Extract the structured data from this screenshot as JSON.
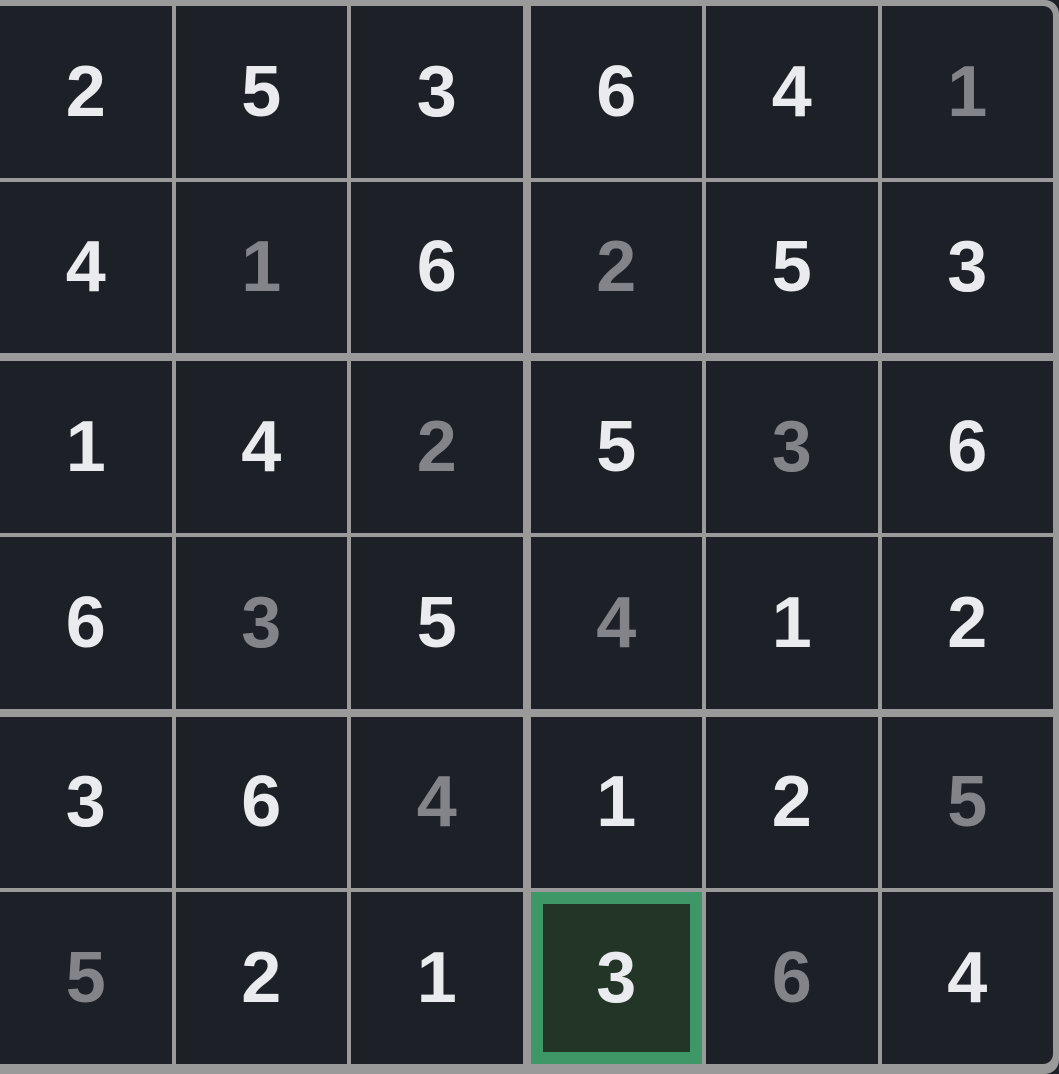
{
  "app": {
    "name": "Sudoku 6x6 board"
  },
  "board": {
    "rows": 6,
    "cols": 6,
    "block": {
      "rows": 2,
      "cols": 3
    },
    "selected": {
      "row": 5,
      "col": 3
    },
    "cells": [
      [
        {
          "value": "2",
          "variant": "bright"
        },
        {
          "value": "5",
          "variant": "bright"
        },
        {
          "value": "3",
          "variant": "bright"
        },
        {
          "value": "6",
          "variant": "bright"
        },
        {
          "value": "4",
          "variant": "bright"
        },
        {
          "value": "1",
          "variant": "muted"
        }
      ],
      [
        {
          "value": "4",
          "variant": "bright"
        },
        {
          "value": "1",
          "variant": "muted"
        },
        {
          "value": "6",
          "variant": "bright"
        },
        {
          "value": "2",
          "variant": "muted"
        },
        {
          "value": "5",
          "variant": "bright"
        },
        {
          "value": "3",
          "variant": "bright"
        }
      ],
      [
        {
          "value": "1",
          "variant": "bright"
        },
        {
          "value": "4",
          "variant": "bright"
        },
        {
          "value": "2",
          "variant": "muted"
        },
        {
          "value": "5",
          "variant": "bright"
        },
        {
          "value": "3",
          "variant": "muted"
        },
        {
          "value": "6",
          "variant": "bright"
        }
      ],
      [
        {
          "value": "6",
          "variant": "bright"
        },
        {
          "value": "3",
          "variant": "muted"
        },
        {
          "value": "5",
          "variant": "bright"
        },
        {
          "value": "4",
          "variant": "muted"
        },
        {
          "value": "1",
          "variant": "bright"
        },
        {
          "value": "2",
          "variant": "bright"
        }
      ],
      [
        {
          "value": "3",
          "variant": "bright"
        },
        {
          "value": "6",
          "variant": "bright"
        },
        {
          "value": "4",
          "variant": "muted"
        },
        {
          "value": "1",
          "variant": "bright"
        },
        {
          "value": "2",
          "variant": "bright"
        },
        {
          "value": "5",
          "variant": "muted"
        }
      ],
      [
        {
          "value": "5",
          "variant": "muted"
        },
        {
          "value": "2",
          "variant": "bright"
        },
        {
          "value": "1",
          "variant": "bright"
        },
        {
          "value": "3",
          "variant": "bright"
        },
        {
          "value": "6",
          "variant": "muted"
        },
        {
          "value": "4",
          "variant": "bright"
        }
      ]
    ]
  },
  "colors": {
    "frame": "#9a9a9a",
    "cell_background": "#1d2026",
    "digit_bright": "#e9ebee",
    "digit_muted": "#828489",
    "selection_border": "#3e9766",
    "selection_fill": "#233527"
  }
}
